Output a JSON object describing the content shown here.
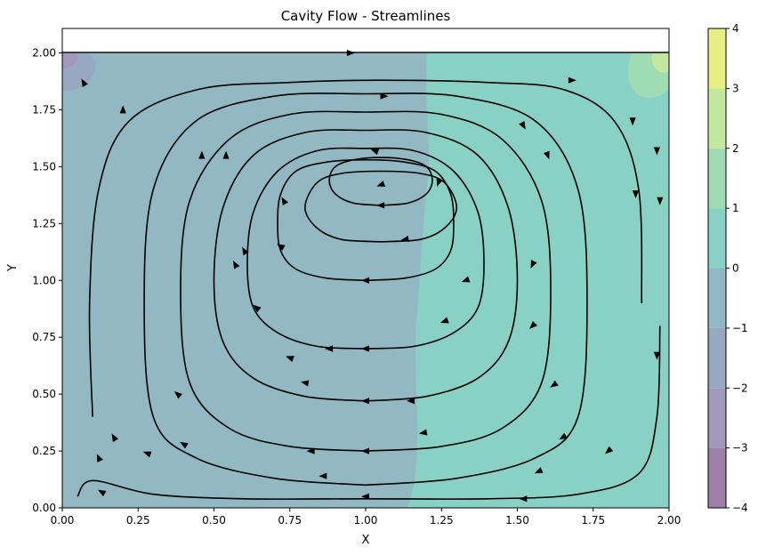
{
  "chart_data": {
    "type": "streamplot",
    "title": "Cavity Flow - Streamlines",
    "xlabel": "X",
    "ylabel": "Y",
    "xlim": [
      0,
      2
    ],
    "ylim": [
      0,
      2.1
    ],
    "xticks": [
      "0.00",
      "0.25",
      "0.50",
      "0.75",
      "1.00",
      "1.25",
      "1.50",
      "1.75",
      "2.00"
    ],
    "yticks": [
      "0.00",
      "0.25",
      "0.50",
      "0.75",
      "1.00",
      "1.25",
      "1.50",
      "1.75",
      "2.00"
    ],
    "grid": false,
    "lid_velocity_direction": "+x",
    "vortex_center": [
      1.05,
      1.5
    ],
    "colorbar": {
      "levels": [
        -4,
        -3,
        -2,
        -1,
        0,
        1,
        2,
        3,
        4
      ],
      "ticks": [
        "−4",
        "−3",
        "−2",
        "−1",
        "0",
        "1",
        "2",
        "3",
        "4"
      ],
      "colors": [
        "#a07fa8",
        "#a199bd",
        "#97a9c1",
        "#91b8c3",
        "#89d0c5",
        "#9fdcb4",
        "#c4e7a0",
        "#e8ef82"
      ]
    },
    "streamlines": [
      {
        "x": [
          1.0,
          0.7,
          0.44,
          0.3,
          0.27,
          0.3,
          0.44,
          0.7,
          1.0,
          1.3,
          1.56,
          1.7,
          1.73,
          1.7,
          1.56,
          1.3,
          1.0
        ],
        "y": [
          0.1,
          0.13,
          0.22,
          0.4,
          0.9,
          1.4,
          1.7,
          1.81,
          1.82,
          1.81,
          1.7,
          1.4,
          0.9,
          0.4,
          0.22,
          0.13,
          0.1
        ]
      },
      {
        "x": [
          1.0,
          0.75,
          0.55,
          0.42,
          0.39,
          0.42,
          0.55,
          0.75,
          1.0,
          1.25,
          1.45,
          1.58,
          1.61,
          1.58,
          1.45,
          1.25,
          1.0
        ],
        "y": [
          0.25,
          0.27,
          0.35,
          0.55,
          0.95,
          1.35,
          1.62,
          1.73,
          1.74,
          1.73,
          1.62,
          1.35,
          0.95,
          0.55,
          0.35,
          0.27,
          0.25
        ]
      },
      {
        "x": [
          1.0,
          0.8,
          0.63,
          0.53,
          0.5,
          0.53,
          0.63,
          0.8,
          1.0,
          1.2,
          1.37,
          1.47,
          1.5,
          1.47,
          1.37,
          1.2,
          1.0
        ],
        "y": [
          0.47,
          0.49,
          0.57,
          0.73,
          1.0,
          1.32,
          1.55,
          1.65,
          1.66,
          1.65,
          1.55,
          1.32,
          1.0,
          0.73,
          0.57,
          0.49,
          0.47
        ]
      },
      {
        "x": [
          1.0,
          0.84,
          0.71,
          0.63,
          0.61,
          0.63,
          0.71,
          0.84,
          1.0,
          1.16,
          1.29,
          1.37,
          1.39,
          1.37,
          1.29,
          1.16,
          1.0
        ],
        "y": [
          0.7,
          0.71,
          0.77,
          0.88,
          1.07,
          1.3,
          1.48,
          1.57,
          1.58,
          1.57,
          1.48,
          1.3,
          1.07,
          0.88,
          0.77,
          0.71,
          0.7
        ]
      },
      {
        "x": [
          1.0,
          0.87,
          0.77,
          0.72,
          0.71,
          0.72,
          0.77,
          0.87,
          1.0,
          1.13,
          1.23,
          1.28,
          1.29,
          1.28,
          1.23,
          1.13,
          1.0
        ],
        "y": [
          1.0,
          1.01,
          1.05,
          1.13,
          1.25,
          1.38,
          1.48,
          1.52,
          1.53,
          1.52,
          1.48,
          1.38,
          1.25,
          1.13,
          1.05,
          1.01,
          1.0
        ]
      },
      {
        "x": [
          1.05,
          0.92,
          0.84,
          0.8,
          0.84,
          0.92,
          1.05,
          1.18,
          1.26,
          1.3,
          1.26,
          1.18,
          1.05
        ],
        "y": [
          1.17,
          1.18,
          1.23,
          1.32,
          1.43,
          1.47,
          1.48,
          1.47,
          1.43,
          1.32,
          1.23,
          1.18,
          1.17
        ]
      },
      {
        "x": [
          1.05,
          0.96,
          0.9,
          0.88,
          0.9,
          0.96,
          1.05,
          1.14,
          1.2,
          1.22,
          1.2,
          1.14,
          1.05
        ],
        "y": [
          1.33,
          1.34,
          1.38,
          1.44,
          1.5,
          1.53,
          1.54,
          1.53,
          1.5,
          1.44,
          1.38,
          1.34,
          1.33
        ]
      },
      {
        "x": [
          0.1,
          0.09,
          0.12,
          0.22,
          0.45,
          0.75,
          1.05,
          1.4,
          1.65,
          1.82,
          1.9,
          1.91
        ],
        "y": [
          0.4,
          0.9,
          1.4,
          1.7,
          1.84,
          1.87,
          1.88,
          1.87,
          1.84,
          1.7,
          1.4,
          0.9
        ]
      },
      {
        "x": [
          0.05,
          0.1,
          0.3,
          0.6,
          1.0,
          1.4,
          1.7,
          1.9,
          1.96,
          1.97
        ],
        "y": [
          0.05,
          0.12,
          0.06,
          0.04,
          0.04,
          0.04,
          0.06,
          0.15,
          0.4,
          0.8
        ]
      }
    ],
    "arrows": [
      {
        "x": 0.95,
        "y": 2.0,
        "dir": 0
      },
      {
        "x": 1.06,
        "y": 1.81,
        "dir": 0
      },
      {
        "x": 1.68,
        "y": 1.88,
        "dir": 0
      },
      {
        "x": 1.88,
        "y": 1.7,
        "dir": 270
      },
      {
        "x": 1.89,
        "y": 1.38,
        "dir": 270
      },
      {
        "x": 1.96,
        "y": 1.57,
        "dir": 270
      },
      {
        "x": 1.97,
        "y": 1.35,
        "dir": 270
      },
      {
        "x": 1.96,
        "y": 0.67,
        "dir": 270
      },
      {
        "x": 1.05,
        "y": 1.33,
        "dir": 180
      },
      {
        "x": 1.03,
        "y": 1.57,
        "dir": 160
      },
      {
        "x": 1.05,
        "y": 1.42,
        "dir": 200
      },
      {
        "x": 1.0,
        "y": 1.0,
        "dir": 180
      },
      {
        "x": 1.0,
        "y": 0.7,
        "dir": 180
      },
      {
        "x": 1.0,
        "y": 0.47,
        "dir": 180
      },
      {
        "x": 1.0,
        "y": 0.25,
        "dir": 180
      },
      {
        "x": 1.0,
        "y": 0.05,
        "dir": 180
      },
      {
        "x": 0.13,
        "y": 0.07,
        "dir": 150
      },
      {
        "x": 0.28,
        "y": 0.24,
        "dir": 160
      },
      {
        "x": 0.4,
        "y": 0.28,
        "dir": 150
      },
      {
        "x": 0.38,
        "y": 0.5,
        "dir": 140
      },
      {
        "x": 0.17,
        "y": 0.31,
        "dir": 120
      },
      {
        "x": 0.12,
        "y": 0.22,
        "dir": 115
      },
      {
        "x": 0.2,
        "y": 1.75,
        "dir": 90
      },
      {
        "x": 0.46,
        "y": 1.55,
        "dir": 90
      },
      {
        "x": 0.54,
        "y": 1.55,
        "dir": 90
      },
      {
        "x": 0.57,
        "y": 1.07,
        "dir": 120
      },
      {
        "x": 0.64,
        "y": 0.88,
        "dir": 140
      },
      {
        "x": 0.75,
        "y": 0.66,
        "dir": 160
      },
      {
        "x": 0.8,
        "y": 0.55,
        "dir": 170
      },
      {
        "x": 0.73,
        "y": 1.35,
        "dir": 120
      },
      {
        "x": 0.6,
        "y": 1.13,
        "dir": 120
      },
      {
        "x": 0.72,
        "y": 1.15,
        "dir": 150
      },
      {
        "x": 1.55,
        "y": 1.07,
        "dir": 245
      },
      {
        "x": 1.55,
        "y": 0.8,
        "dir": 225
      },
      {
        "x": 1.62,
        "y": 0.54,
        "dir": 215
      },
      {
        "x": 1.65,
        "y": 0.31,
        "dir": 210
      },
      {
        "x": 1.57,
        "y": 0.16,
        "dir": 205
      },
      {
        "x": 1.8,
        "y": 0.25,
        "dir": 220
      },
      {
        "x": 1.52,
        "y": 1.68,
        "dir": 300
      },
      {
        "x": 1.6,
        "y": 1.55,
        "dir": 290
      },
      {
        "x": 1.24,
        "y": 1.43,
        "dir": 250
      },
      {
        "x": 1.13,
        "y": 1.18,
        "dir": 190
      },
      {
        "x": 1.33,
        "y": 1.0,
        "dir": 200
      },
      {
        "x": 1.26,
        "y": 0.82,
        "dir": 200
      },
      {
        "x": 0.88,
        "y": 0.7,
        "dir": 180
      },
      {
        "x": 1.15,
        "y": 0.47,
        "dir": 180
      },
      {
        "x": 0.82,
        "y": 0.25,
        "dir": 180
      },
      {
        "x": 0.86,
        "y": 0.14,
        "dir": 180
      },
      {
        "x": 1.52,
        "y": 0.04,
        "dir": 180
      },
      {
        "x": 0.07,
        "y": 1.87,
        "dir": 120
      },
      {
        "x": 1.19,
        "y": 0.33,
        "dir": 190
      },
      {
        "x": 0.88,
        "y": 0.7,
        "dir": 180
      }
    ]
  }
}
